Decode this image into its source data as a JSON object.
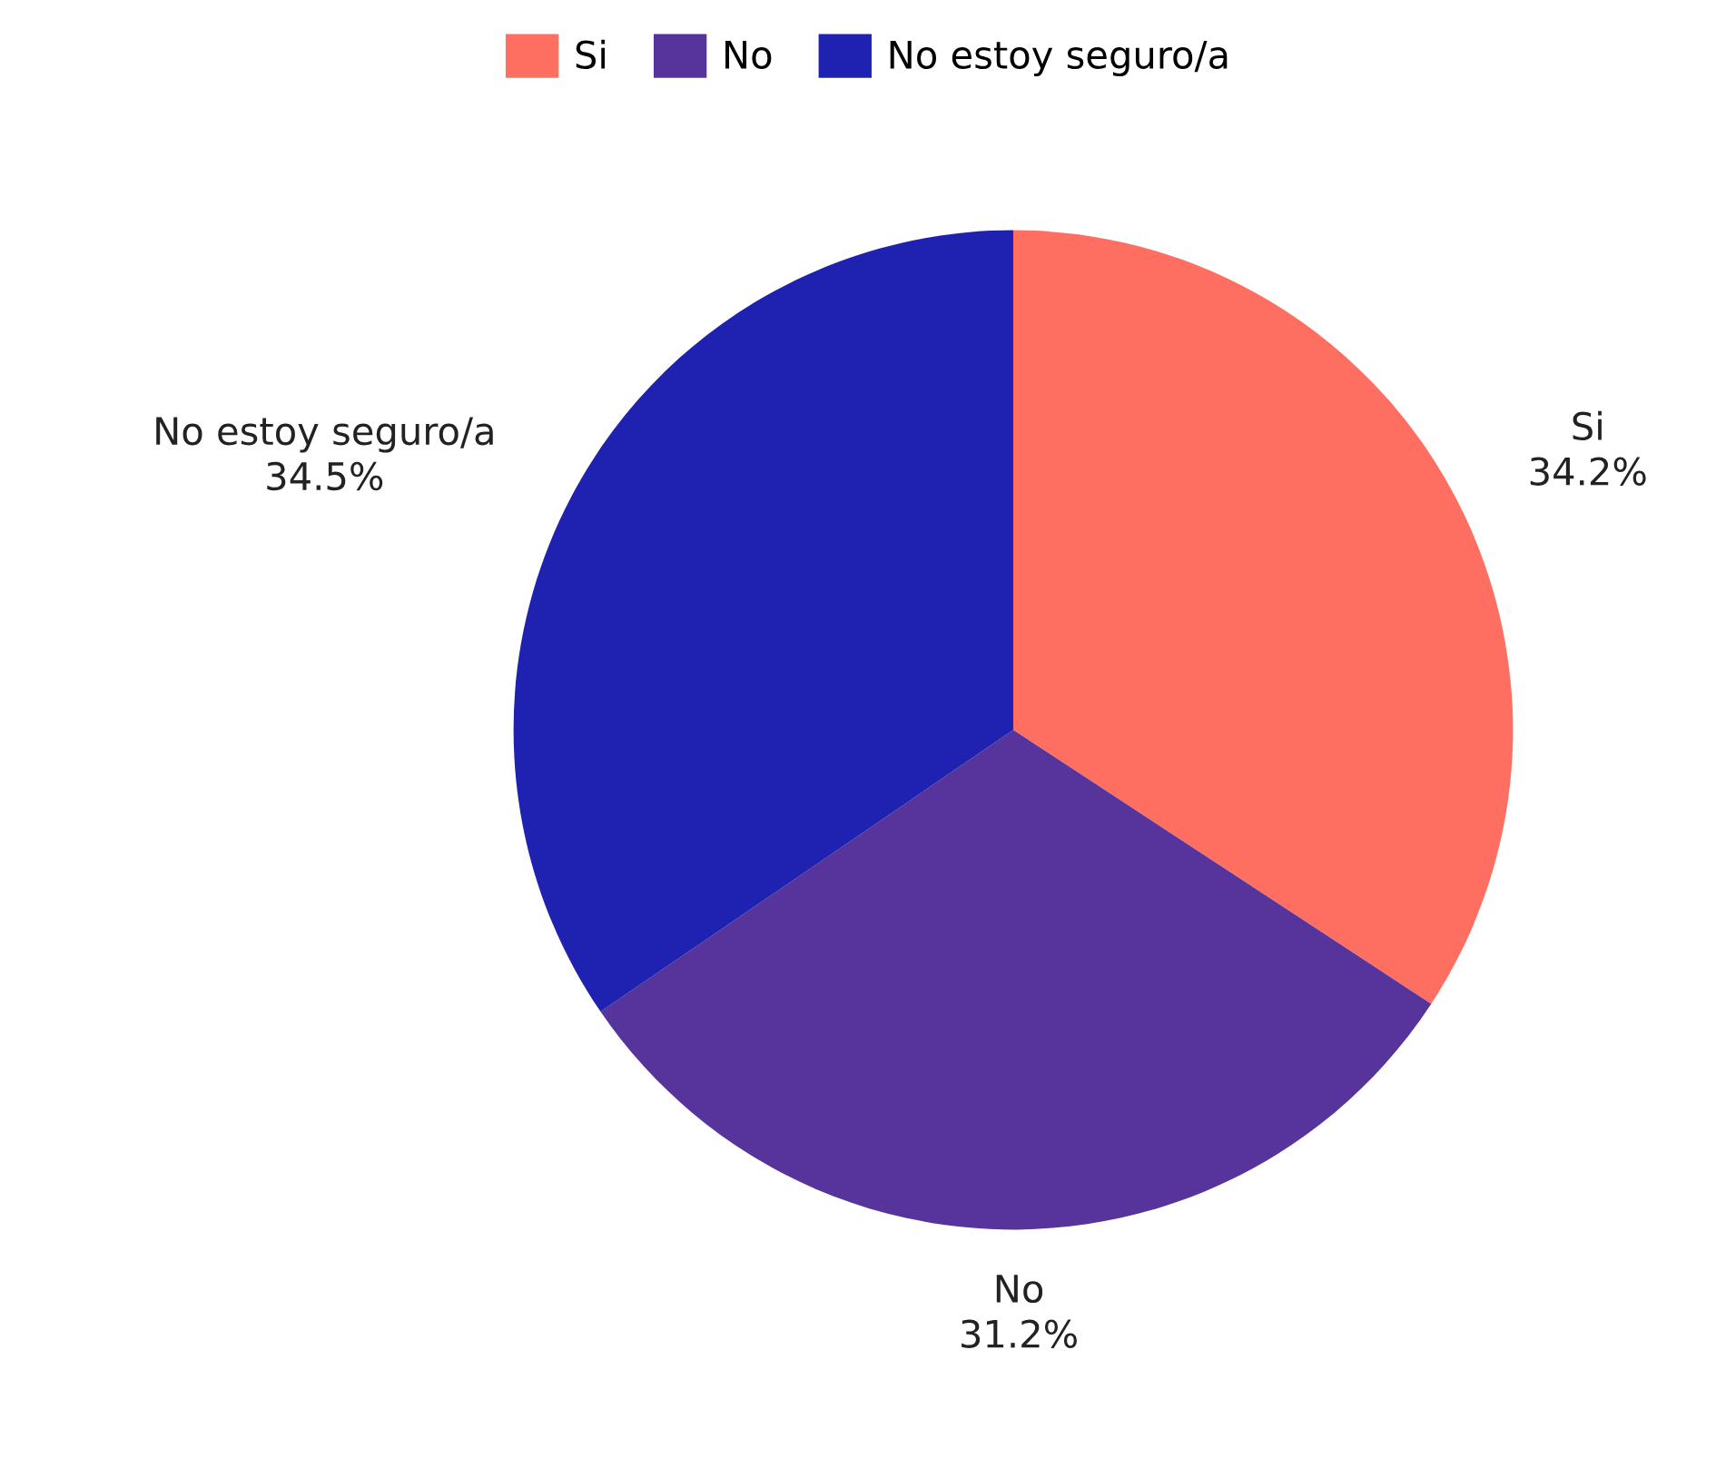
{
  "chart_data": {
    "type": "pie",
    "categories": [
      "Si",
      "No",
      "No estoy seguro/a"
    ],
    "values": [
      34.2,
      31.2,
      34.5
    ],
    "colors": [
      "#ff6f61",
      "#56349b",
      "#1f22b0"
    ],
    "value_labels": [
      "34.2%",
      "31.2%",
      "34.5%"
    ],
    "legend": "top"
  }
}
